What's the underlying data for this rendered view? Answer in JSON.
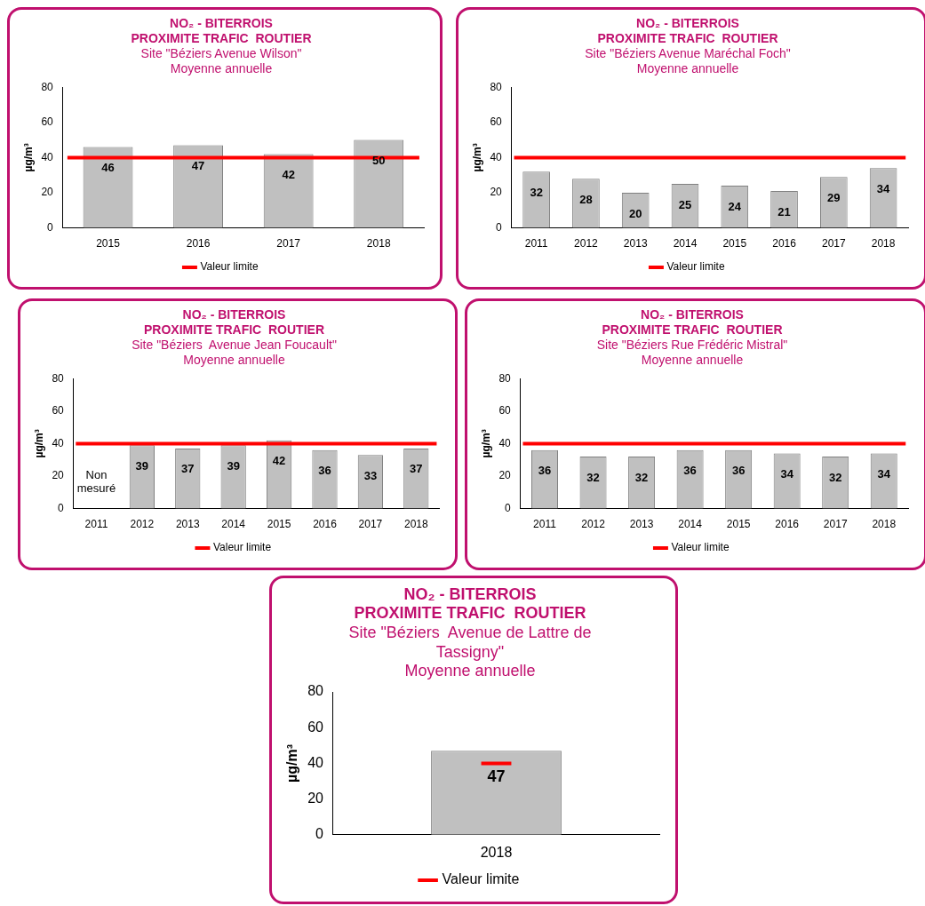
{
  "chart_data": [
    {
      "type": "bar",
      "title": "NO₂ - BITERROIS\nPROXIMITE TRAFIC  ROUTIER",
      "subtitle": "Site \"Béziers Avenue Wilson\"\nMoyenne annuelle",
      "ylabel": "µg/m³",
      "categories": [
        "2015",
        "2016",
        "2017",
        "2018"
      ],
      "values": [
        46,
        47,
        42,
        50
      ],
      "color": "#c0c0c0",
      "data_labels": true,
      "ylim": [
        0,
        80
      ],
      "yticks": [
        0,
        20,
        40,
        60,
        80
      ],
      "grid": false,
      "legend": "bottom",
      "ref_lines": [
        {
          "axis": "y",
          "value": 40,
          "label": "Valeur limite",
          "color": "#ff0000"
        }
      ]
    },
    {
      "type": "bar",
      "title": "NO₂ - BITERROIS\nPROXIMITE TRAFIC  ROUTIER",
      "subtitle": "Site \"Béziers Avenue Maréchal Foch\"\nMoyenne annuelle",
      "ylabel": "µg/m³",
      "categories": [
        "2011",
        "2012",
        "2013",
        "2014",
        "2015",
        "2016",
        "2017",
        "2018"
      ],
      "values": [
        32,
        28,
        20,
        25,
        24,
        21,
        29,
        34
      ],
      "color": "#c0c0c0",
      "data_labels": true,
      "ylim": [
        0,
        80
      ],
      "yticks": [
        0,
        20,
        40,
        60,
        80
      ],
      "grid": false,
      "legend": "bottom",
      "ref_lines": [
        {
          "axis": "y",
          "value": 40,
          "label": "Valeur limite",
          "color": "#ff0000"
        }
      ]
    },
    {
      "type": "bar",
      "title": "NO₂ - BITERROIS\nPROXIMITE TRAFIC  ROUTIER",
      "subtitle": "Site \"Béziers  Avenue Jean Foucault\"\nMoyenne annuelle",
      "ylabel": "µg/m³",
      "categories": [
        "2011",
        "2012",
        "2013",
        "2014",
        "2015",
        "2016",
        "2017",
        "2018"
      ],
      "values": [
        null,
        39,
        37,
        39,
        42,
        36,
        33,
        37
      ],
      "color": "#c0c0c0",
      "data_labels": true,
      "ylim": [
        0,
        80
      ],
      "yticks": [
        0,
        20,
        40,
        60,
        80
      ],
      "grid": false,
      "legend": "bottom",
      "ref_lines": [
        {
          "axis": "y",
          "value": 40,
          "label": "Valeur limite",
          "color": "#ff0000"
        }
      ],
      "annotations": [
        "Non mesuré"
      ]
    },
    {
      "type": "bar",
      "title": "NO₂ - BITERROIS\nPROXIMITE TRAFIC  ROUTIER",
      "subtitle": "Site \"Béziers Rue Frédéric Mistral\"\nMoyenne annuelle",
      "ylabel": "µg/m³",
      "categories": [
        "2011",
        "2012",
        "2013",
        "2014",
        "2015",
        "2016",
        "2017",
        "2018"
      ],
      "values": [
        36,
        32,
        32,
        36,
        36,
        34,
        32,
        34
      ],
      "color": "#c0c0c0",
      "data_labels": true,
      "ylim": [
        0,
        80
      ],
      "yticks": [
        0,
        20,
        40,
        60,
        80
      ],
      "grid": false,
      "legend": "bottom",
      "ref_lines": [
        {
          "axis": "y",
          "value": 40,
          "label": "Valeur limite",
          "color": "#ff0000"
        }
      ]
    },
    {
      "type": "bar",
      "title": "NO₂ - BITERROIS\nPROXIMITE TRAFIC  ROUTIER",
      "subtitle": "Site \"Béziers  Avenue de Lattre de\nTassigny\"\nMoyenne annuelle",
      "ylabel": "µg/m³",
      "categories": [
        "2018"
      ],
      "values": [
        47
      ],
      "color": "#c0c0c0",
      "data_labels": true,
      "ylim": [
        0,
        80
      ],
      "yticks": [
        0,
        20,
        40,
        60,
        80
      ],
      "grid": false,
      "legend": "bottom",
      "ref_lines": [
        {
          "axis": "y",
          "value": 40,
          "label": "Valeur limite",
          "color": "#ff0000"
        }
      ]
    }
  ]
}
